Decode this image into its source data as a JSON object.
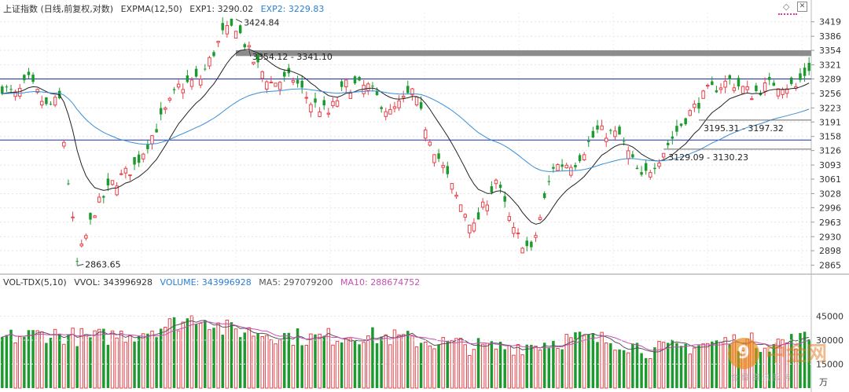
{
  "header": {
    "title": "上证指数 (日线,前复权,对数)",
    "indicator": "EXPMA(12,50)",
    "exp1": "EXP1: 3290.02",
    "exp2": "EXP2: 3229.83"
  },
  "vol_header": {
    "indicator": "VOL-TDX(5,10)",
    "vvol": "VVOL: 343996928",
    "volume": "VOLUME: 343996928",
    "ma5": "MA5: 297079200",
    "ma10": "MA10: 288674752"
  },
  "colors": {
    "up": "#e8424a",
    "down": "#1d9a2f",
    "exp1": "#222222",
    "exp2": "#3a8fd6",
    "hline": "#1a2fb0",
    "band": "#8c8c8c",
    "ma5": "#555555",
    "ma10": "#c44fb4",
    "accent": "#2b7fd4",
    "pink": "#e3379e"
  },
  "watermark": {
    "text": "中金网",
    "sub": "金 融 资 讯 服 务"
  },
  "chart_data": {
    "type": "candlestick",
    "y_ticks": [
      3419,
      3386,
      3354,
      3321,
      3289,
      3256,
      3223,
      3191,
      3158,
      3126,
      3093,
      3061,
      3028,
      2996,
      2963,
      2930,
      2898,
      2865
    ],
    "ylim": [
      2850,
      3440
    ],
    "vol_ticks": [
      "45000",
      "30000",
      "15000"
    ],
    "vol_unit": "万",
    "annotations": [
      {
        "label": "3424.84",
        "index": 53,
        "value": 3424.84,
        "pos": "high"
      },
      {
        "label": "2863.65",
        "index": 17,
        "value": 2863.65,
        "pos": "low"
      },
      {
        "label": "3354.12 - 3341.10",
        "index": 56,
        "value": 3354.12,
        "pos": "band"
      },
      {
        "label": "3195.31 - 3197.32",
        "index": 158,
        "value": 3195.31,
        "pos": "gap"
      },
      {
        "label": "3129.09 - 3130.23",
        "index": 150,
        "value": 3129.09,
        "pos": "gap"
      }
    ],
    "horizontal_lines": [
      3289,
      3150
    ],
    "band": [
      3341.1,
      3354.12
    ],
    "keypoints": [
      [
        0,
        3270
      ],
      [
        3,
        3250
      ],
      [
        6,
        3285
      ],
      [
        10,
        3225
      ],
      [
        13,
        3240
      ],
      [
        17,
        2870
      ],
      [
        21,
        2990
      ],
      [
        25,
        3050
      ],
      [
        30,
        3090
      ],
      [
        34,
        3160
      ],
      [
        40,
        3270
      ],
      [
        45,
        3290
      ],
      [
        50,
        3390
      ],
      [
        53,
        3410
      ],
      [
        57,
        3330
      ],
      [
        61,
        3280
      ],
      [
        66,
        3290
      ],
      [
        70,
        3235
      ],
      [
        74,
        3210
      ],
      [
        78,
        3275
      ],
      [
        83,
        3270
      ],
      [
        88,
        3210
      ],
      [
        93,
        3260
      ],
      [
        98,
        3130
      ],
      [
        103,
        3020
      ],
      [
        107,
        2950
      ],
      [
        112,
        3060
      ],
      [
        116,
        2940
      ],
      [
        120,
        2895
      ],
      [
        125,
        3090
      ],
      [
        130,
        3100
      ],
      [
        135,
        3170
      ],
      [
        140,
        3160
      ],
      [
        145,
        3060
      ],
      [
        149,
        3110
      ],
      [
        155,
        3200
      ],
      [
        160,
        3260
      ],
      [
        165,
        3285
      ],
      [
        170,
        3255
      ],
      [
        175,
        3280
      ],
      [
        180,
        3270
      ],
      [
        183,
        3315
      ]
    ],
    "vol_keypoints": [
      [
        0,
        30
      ],
      [
        10,
        33
      ],
      [
        20,
        30
      ],
      [
        30,
        33
      ],
      [
        40,
        40
      ],
      [
        45,
        44
      ],
      [
        50,
        36
      ],
      [
        60,
        33
      ],
      [
        70,
        30
      ],
      [
        80,
        32
      ],
      [
        90,
        30
      ],
      [
        100,
        27
      ],
      [
        110,
        24
      ],
      [
        120,
        26
      ],
      [
        130,
        30
      ],
      [
        140,
        28
      ],
      [
        148,
        22
      ],
      [
        155,
        25
      ],
      [
        165,
        28
      ],
      [
        175,
        27
      ],
      [
        183,
        30
      ]
    ]
  }
}
